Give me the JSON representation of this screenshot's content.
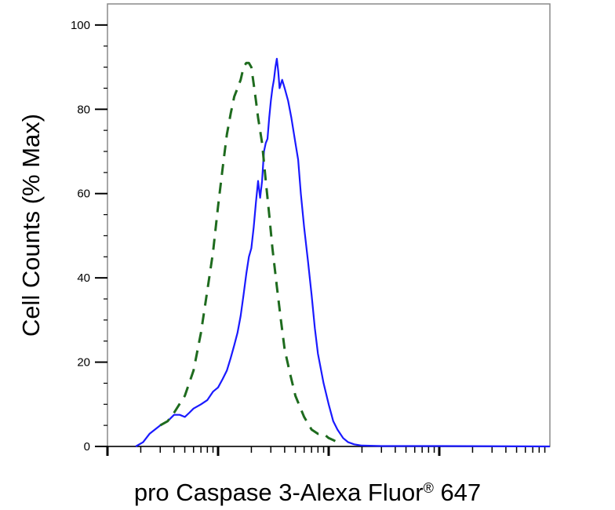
{
  "chart_data": {
    "type": "line",
    "title": "",
    "xlabel": "pro Caspase 3-Alexa Fluor",
    "xlabel_sup": "®",
    "xlabel_tail": " 647",
    "ylabel": "Cell Counts (% Max)",
    "x_scale": "log",
    "xlim": [
      1,
      10000
    ],
    "ylim": [
      0,
      105
    ],
    "yticks": [
      "0",
      "20",
      "40",
      "60",
      "80",
      "100"
    ],
    "ytick_values": [
      0,
      20,
      40,
      60,
      80,
      100
    ],
    "grid": false,
    "legend": "none",
    "series": [
      {
        "style": "solid",
        "color": "#1a1aff",
        "points": [
          [
            1.8,
            0
          ],
          [
            2.1,
            1
          ],
          [
            2.4,
            3
          ],
          [
            3.0,
            5
          ],
          [
            3.5,
            6
          ],
          [
            4.0,
            7.5
          ],
          [
            4.5,
            7.5
          ],
          [
            5.0,
            7
          ],
          [
            5.5,
            8
          ],
          [
            6.0,
            9
          ],
          [
            7.0,
            10
          ],
          [
            8.0,
            11
          ],
          [
            9.0,
            13
          ],
          [
            10.0,
            14
          ],
          [
            11,
            16
          ],
          [
            12,
            18
          ],
          [
            13,
            21
          ],
          [
            14,
            24
          ],
          [
            15,
            27
          ],
          [
            16,
            31
          ],
          [
            17,
            36
          ],
          [
            18,
            41
          ],
          [
            19,
            45
          ],
          [
            20,
            47
          ],
          [
            21,
            52
          ],
          [
            22,
            58
          ],
          [
            23,
            63
          ],
          [
            24,
            59
          ],
          [
            25,
            63
          ],
          [
            26,
            70
          ],
          [
            27,
            72
          ],
          [
            28,
            73
          ],
          [
            29,
            78
          ],
          [
            30,
            82
          ],
          [
            31,
            85
          ],
          [
            32,
            87
          ],
          [
            33,
            90
          ],
          [
            34,
            92
          ],
          [
            35,
            89
          ],
          [
            36,
            85
          ],
          [
            38,
            87
          ],
          [
            40,
            85
          ],
          [
            43,
            82
          ],
          [
            46,
            78
          ],
          [
            50,
            72
          ],
          [
            53,
            68
          ],
          [
            56,
            60
          ],
          [
            60,
            52
          ],
          [
            65,
            44
          ],
          [
            70,
            36
          ],
          [
            75,
            28
          ],
          [
            80,
            22
          ],
          [
            90,
            15
          ],
          [
            100,
            10
          ],
          [
            110,
            6
          ],
          [
            120,
            4
          ],
          [
            135,
            2
          ],
          [
            150,
            1
          ],
          [
            170,
            0.5
          ],
          [
            200,
            0.2
          ],
          [
            300,
            0.1
          ],
          [
            1000,
            0.1
          ],
          [
            10000,
            0
          ]
        ]
      },
      {
        "style": "dashed",
        "color": "#1e6b1e",
        "points": [
          [
            3.0,
            5
          ],
          [
            3.5,
            6
          ],
          [
            4.0,
            8
          ],
          [
            5.0,
            12
          ],
          [
            6.0,
            18
          ],
          [
            7.0,
            27
          ],
          [
            8.0,
            37
          ],
          [
            9.0,
            46
          ],
          [
            10.0,
            57
          ],
          [
            11,
            66
          ],
          [
            12,
            74
          ],
          [
            13,
            79
          ],
          [
            14,
            83
          ],
          [
            15,
            85
          ],
          [
            16,
            87
          ],
          [
            17,
            90
          ],
          [
            18,
            91
          ],
          [
            19,
            91
          ],
          [
            20,
            90
          ],
          [
            21,
            86
          ],
          [
            22,
            82
          ],
          [
            23,
            78
          ],
          [
            25,
            72
          ],
          [
            27,
            63
          ],
          [
            29,
            55
          ],
          [
            31,
            47
          ],
          [
            34,
            38
          ],
          [
            37,
            30
          ],
          [
            40,
            23
          ],
          [
            45,
            17
          ],
          [
            50,
            12
          ],
          [
            60,
            7
          ],
          [
            70,
            4
          ],
          [
            80,
            3
          ],
          [
            90,
            3
          ],
          [
            100,
            2
          ],
          [
            110,
            1.5
          ],
          [
            120,
            1
          ],
          [
            130,
            0.5
          ]
        ]
      }
    ]
  }
}
